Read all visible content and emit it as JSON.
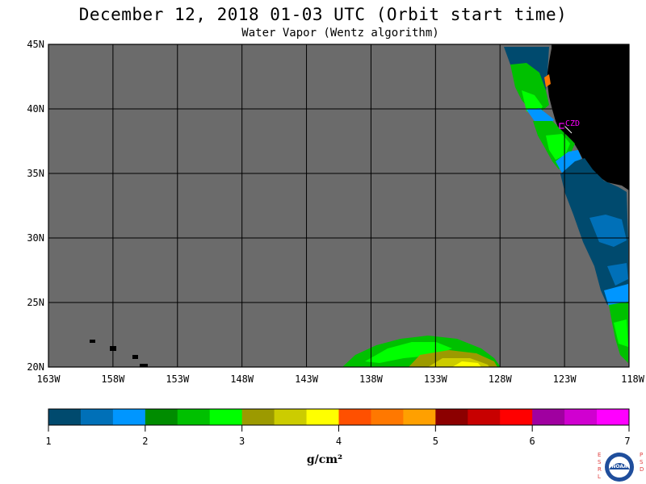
{
  "title": "December 12, 2018  01-03 UTC  (Orbit start time)",
  "subtitle": "Water Vapor (Wentz algorithm)",
  "map": {
    "lon_range": [
      -163,
      -118
    ],
    "lat_range": [
      20,
      45
    ],
    "lat_ticks": [
      {
        "value": 45,
        "label": "45N"
      },
      {
        "value": 40,
        "label": "40N"
      },
      {
        "value": 35,
        "label": "35N"
      },
      {
        "value": 30,
        "label": "30N"
      },
      {
        "value": 25,
        "label": "25N"
      },
      {
        "value": 20,
        "label": "20N"
      }
    ],
    "lon_ticks": [
      {
        "value": -163,
        "label": "163W"
      },
      {
        "value": -158,
        "label": "158W"
      },
      {
        "value": -153,
        "label": "153W"
      },
      {
        "value": -148,
        "label": "148W"
      },
      {
        "value": -143,
        "label": "143W"
      },
      {
        "value": -138,
        "label": "138W"
      },
      {
        "value": -133,
        "label": "133W"
      },
      {
        "value": -128,
        "label": "128W"
      },
      {
        "value": -123,
        "label": "123W"
      },
      {
        "value": -118,
        "label": "118W"
      }
    ],
    "no_data_color": "#6b6b6b",
    "land_color": "#000000",
    "station": {
      "label": "CZD",
      "color": "#ff00ff"
    }
  },
  "colorbar": {
    "unit": "g/cm²",
    "tick_labels": [
      "1",
      "2",
      "3",
      "4",
      "5",
      "6",
      "7"
    ],
    "colors": [
      "#004a6e",
      "#0070b8",
      "#0096ff",
      "#008c00",
      "#00c000",
      "#00ff00",
      "#9c9a00",
      "#cccc00",
      "#ffff00",
      "#ff5000",
      "#ff7800",
      "#ffa000",
      "#8c0000",
      "#c80000",
      "#ff0000",
      "#a000a0",
      "#d000d0",
      "#ff00ff"
    ]
  },
  "logo": {
    "left_letters": "ESRL",
    "right_letters": "PSD",
    "name": "NOAA"
  }
}
